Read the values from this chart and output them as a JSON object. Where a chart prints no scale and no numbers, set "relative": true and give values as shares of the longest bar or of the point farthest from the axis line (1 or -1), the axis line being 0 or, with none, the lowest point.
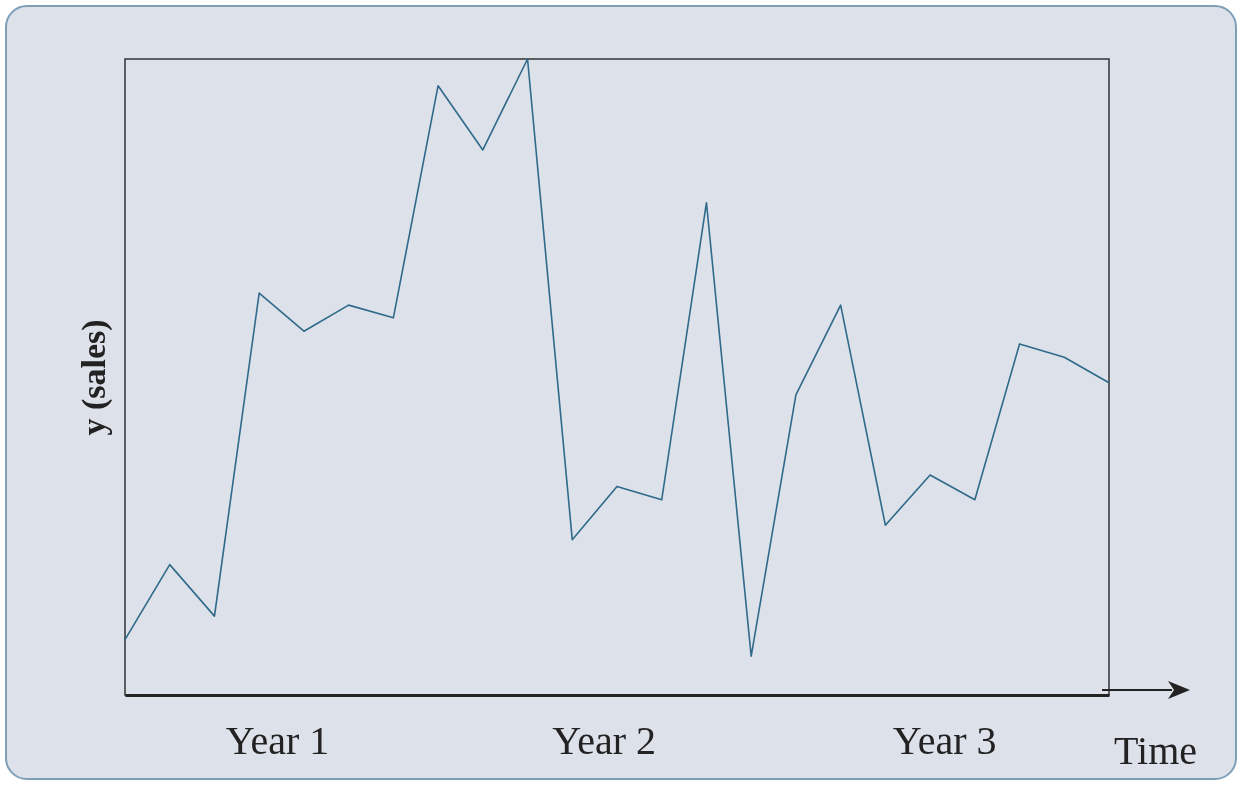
{
  "chart_data": {
    "type": "line",
    "relative": true,
    "ylabel": "y (sales)",
    "xlabel": "Time",
    "categories": [
      null,
      null,
      null,
      null,
      null,
      null,
      null,
      null,
      null,
      null,
      null,
      null,
      null,
      null,
      null,
      null,
      null,
      null,
      null,
      null,
      null,
      null,
      null
    ],
    "series": [
      {
        "color": "#2f6a8a",
        "values": [
          0.087,
          0.205,
          0.124,
          0.632,
          0.572,
          0.613,
          0.593,
          0.958,
          0.857,
          1,
          0.244,
          0.328,
          0.307,
          0.774,
          0.061,
          0.472,
          0.613,
          0.267,
          0.346,
          0.307,
          0.552,
          0.531,
          0.491
        ]
      }
    ],
    "annotations": [
      "Year 1",
      "Year 2",
      "Year 3"
    ],
    "line_style": "solid"
  }
}
